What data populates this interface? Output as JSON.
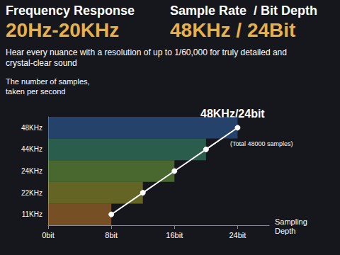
{
  "chart_data": {
    "type": "line",
    "orientation": "horizontal",
    "headlines": [
      {
        "label": "Frequency Response",
        "value": "20Hz-20KHz"
      },
      {
        "label": "Sample Rate  / Bit Depth",
        "value": "48KHz / 24Bit"
      }
    ],
    "subtitle": "Hear every nuance with a resolution of up to 1/60,000 for truly detailed and crystal-clear sound",
    "y_label": "The number of samples,\ntaken per second",
    "x_label": "Sampling\nDepth",
    "categories": [
      "11KHz",
      "22KHz",
      "24KHz",
      "44KHz",
      "48KHz"
    ],
    "values": [
      8,
      12,
      16,
      20,
      24
    ],
    "colors": [
      "#b8742c",
      "#9a9a2c",
      "#6a9e3c",
      "#3b8c6e",
      "#2f5f9e"
    ],
    "color": "#ffffff",
    "marker": "circle",
    "line_style": "solid",
    "xlim": [
      0,
      28
    ],
    "xticks": [
      {
        "value": 0,
        "label": "0bit"
      },
      {
        "value": 8,
        "label": "8bit"
      },
      {
        "value": 16,
        "label": "16bit"
      },
      {
        "value": 24,
        "label": "24bit"
      }
    ],
    "grid": false,
    "annotations": [
      "48KHz/24bit",
      "(Total 48000 samples)"
    ]
  }
}
